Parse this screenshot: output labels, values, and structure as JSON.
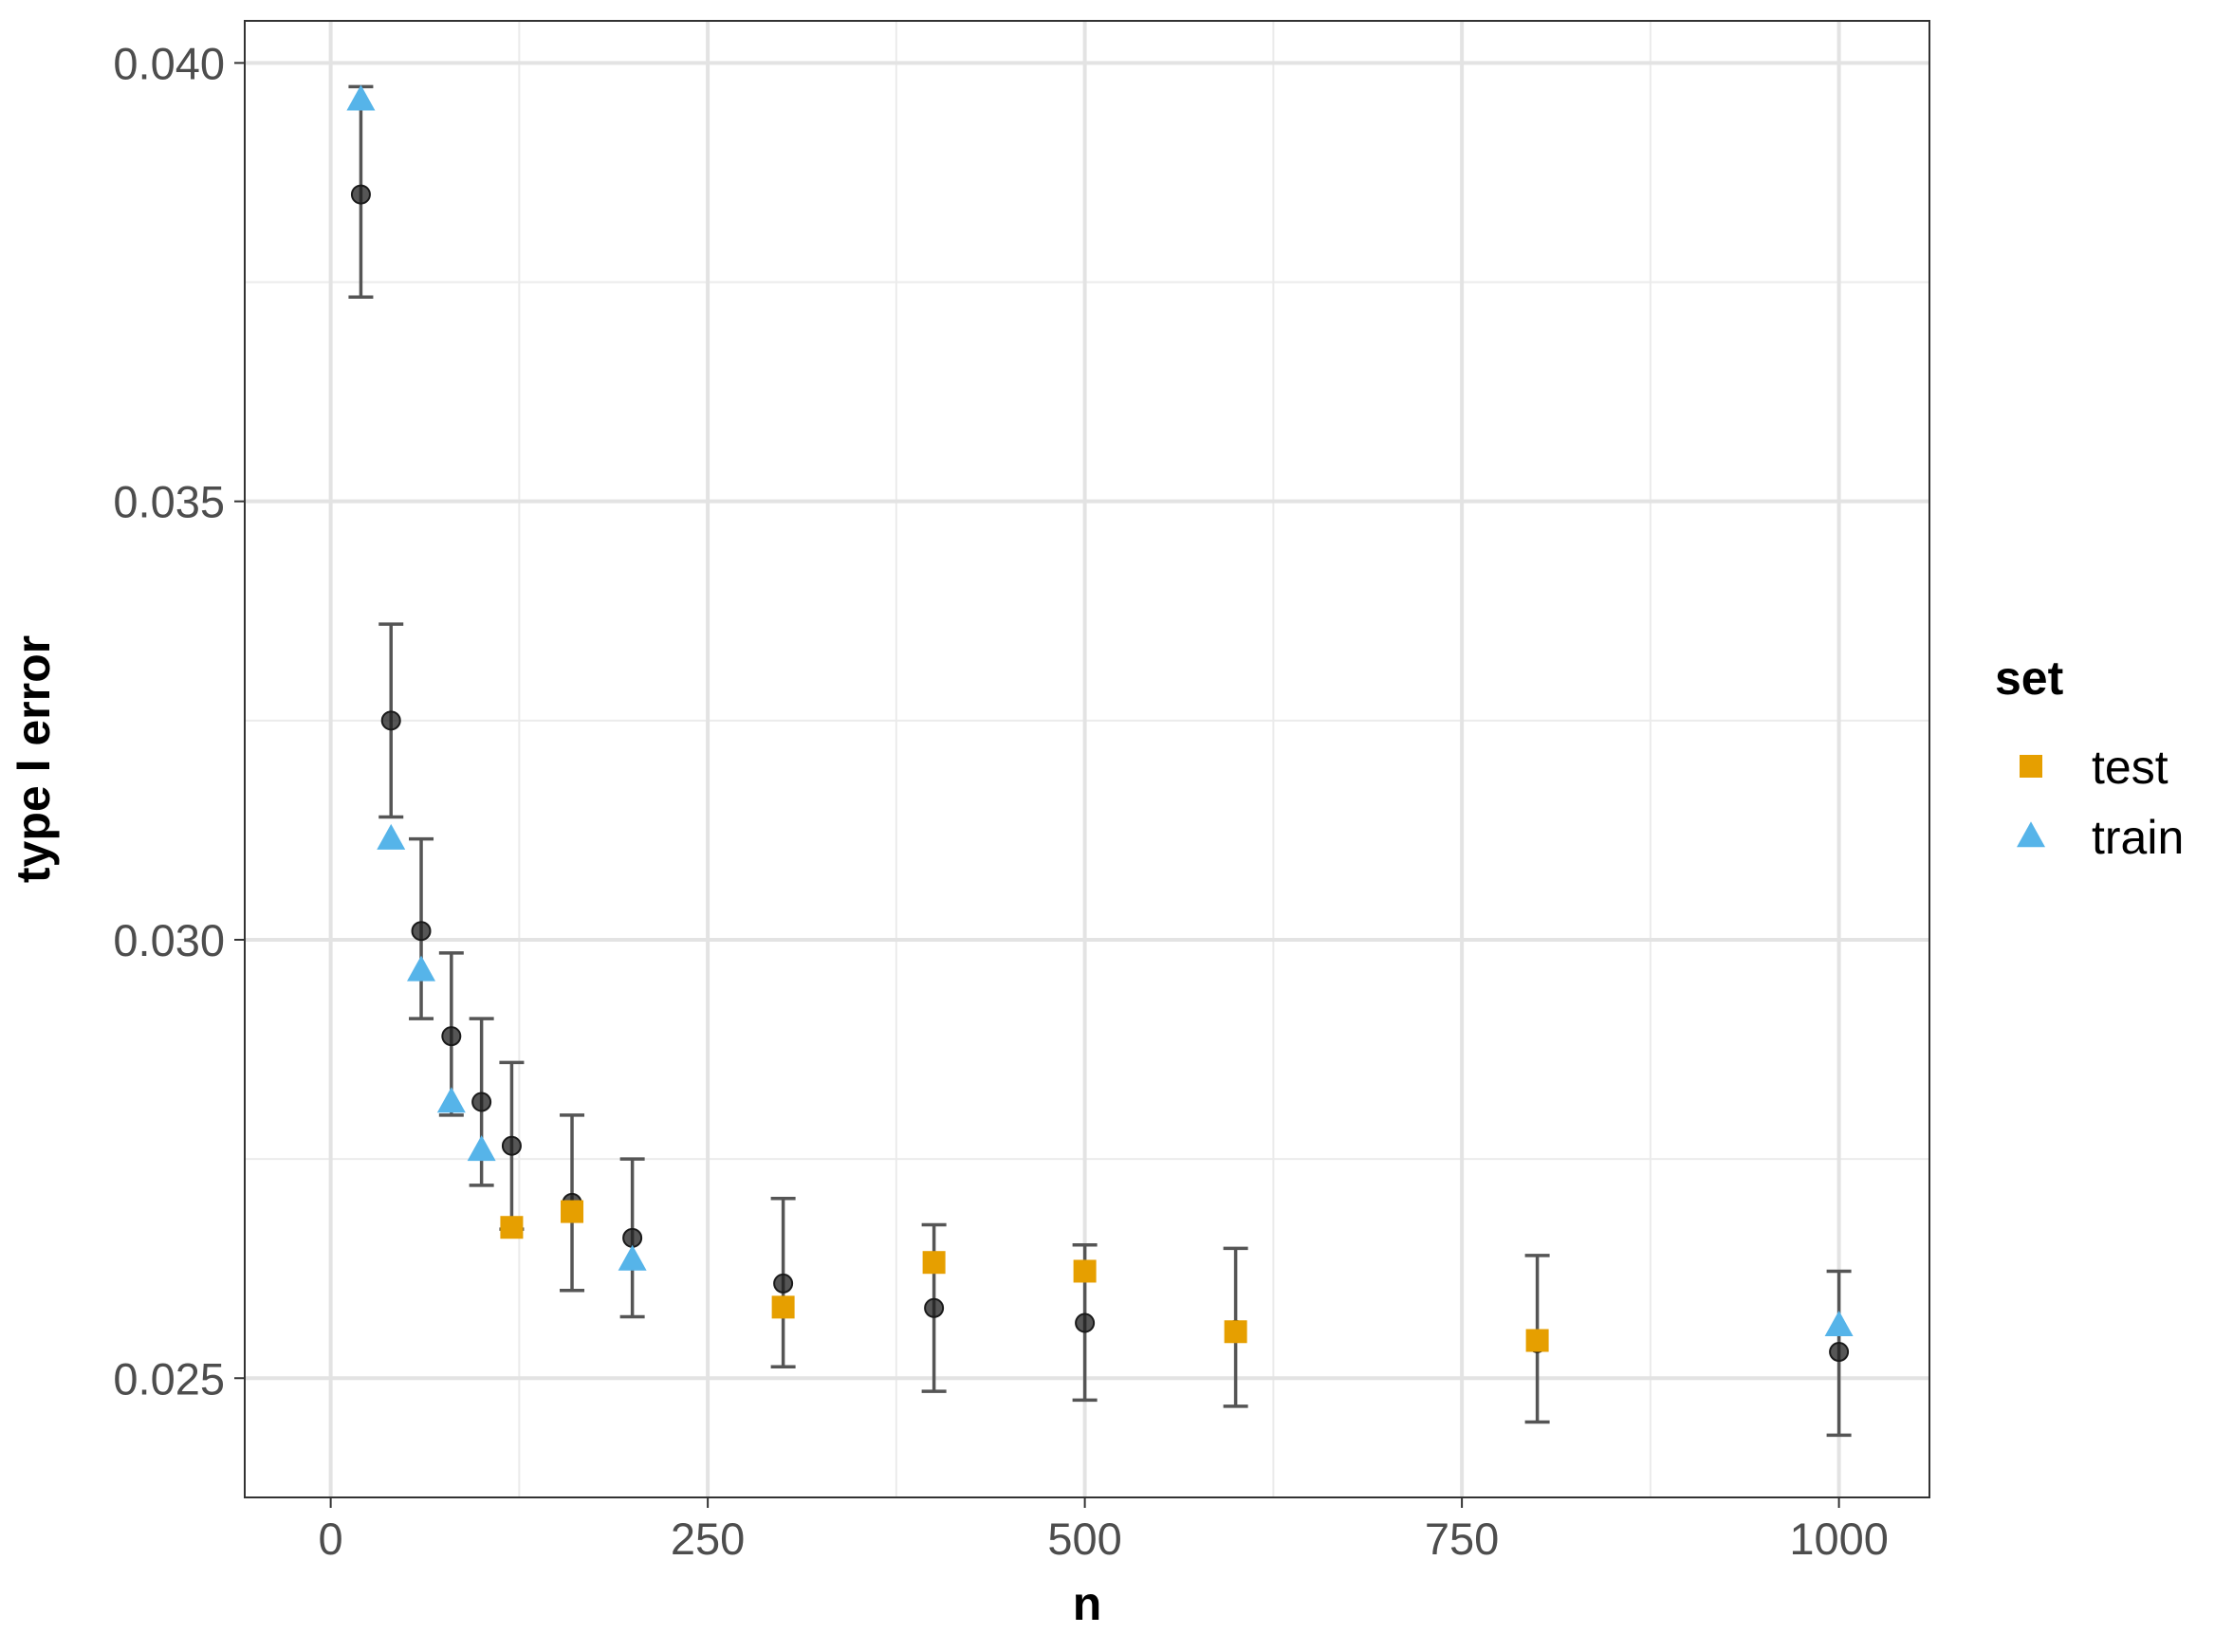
{
  "chart_data": {
    "type": "scatter",
    "xlabel": "n",
    "ylabel": "type I error",
    "xlim": [
      -57,
      1060
    ],
    "ylim": [
      0.02364,
      0.04048
    ],
    "x_ticks": [
      0,
      250,
      500,
      750,
      1000
    ],
    "x_tick_labels": [
      "0",
      "250",
      "500",
      "750",
      "1000"
    ],
    "y_ticks": [
      0.025,
      0.03,
      0.035,
      0.04
    ],
    "y_tick_labels": [
      "0.025",
      "0.030",
      "0.035",
      "0.040"
    ],
    "grid": true,
    "legend": {
      "title": "set",
      "position": "right",
      "entries": [
        {
          "label": "test",
          "shape": "square",
          "color": "#E69F00"
        },
        {
          "label": "train",
          "shape": "triangle",
          "color": "#56B4E9"
        }
      ]
    },
    "mean_with_errorbars": {
      "color": "#333333",
      "points": [
        {
          "x": 20,
          "y": 0.0385,
          "ymin": 0.03733,
          "ymax": 0.03973
        },
        {
          "x": 40,
          "y": 0.0325,
          "ymin": 0.0314,
          "ymax": 0.0336
        },
        {
          "x": 60,
          "y": 0.0301,
          "ymin": 0.0291,
          "ymax": 0.03115
        },
        {
          "x": 80,
          "y": 0.0289,
          "ymin": 0.028,
          "ymax": 0.02985
        },
        {
          "x": 100,
          "y": 0.02815,
          "ymin": 0.0272,
          "ymax": 0.0291
        },
        {
          "x": 120,
          "y": 0.02765,
          "ymin": 0.0267,
          "ymax": 0.0286
        },
        {
          "x": 160,
          "y": 0.027,
          "ymin": 0.026,
          "ymax": 0.028
        },
        {
          "x": 200,
          "y": 0.0266,
          "ymin": 0.0257,
          "ymax": 0.0275
        },
        {
          "x": 300,
          "y": 0.02608,
          "ymin": 0.02513,
          "ymax": 0.02705
        },
        {
          "x": 400,
          "y": 0.0258,
          "ymin": 0.02485,
          "ymax": 0.02675
        },
        {
          "x": 500,
          "y": 0.02563,
          "ymin": 0.02475,
          "ymax": 0.02652
        },
        {
          "x": 600,
          "y": 0.02555,
          "ymin": 0.02468,
          "ymax": 0.02648
        },
        {
          "x": 800,
          "y": 0.0254,
          "ymin": 0.0245,
          "ymax": 0.0264
        },
        {
          "x": 1000,
          "y": 0.0253,
          "ymin": 0.02435,
          "ymax": 0.02622
        }
      ]
    },
    "series": [
      {
        "name": "test",
        "marker": "square",
        "color": "#E69F00",
        "points": [
          {
            "x": 120,
            "y": 0.02672
          },
          {
            "x": 160,
            "y": 0.0269
          },
          {
            "x": 300,
            "y": 0.02581
          },
          {
            "x": 400,
            "y": 0.02632
          },
          {
            "x": 500,
            "y": 0.02622
          },
          {
            "x": 600,
            "y": 0.02553
          },
          {
            "x": 800,
            "y": 0.02543
          }
        ]
      },
      {
        "name": "train",
        "marker": "triangle",
        "color": "#56B4E9",
        "points": [
          {
            "x": 20,
            "y": 0.03958
          },
          {
            "x": 40,
            "y": 0.03115
          },
          {
            "x": 60,
            "y": 0.02965
          },
          {
            "x": 80,
            "y": 0.02815
          },
          {
            "x": 100,
            "y": 0.0276
          },
          {
            "x": 200,
            "y": 0.02635
          },
          {
            "x": 1000,
            "y": 0.0256
          }
        ]
      }
    ]
  }
}
